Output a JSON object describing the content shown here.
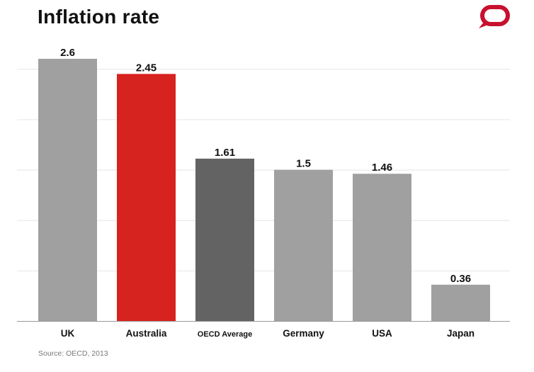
{
  "chart_data": {
    "type": "bar",
    "title": "Inflation rate",
    "categories": [
      "UK",
      "Australia",
      "OECD Average",
      "Germany",
      "USA",
      "Japan"
    ],
    "values": [
      2.6,
      2.45,
      1.61,
      1.5,
      1.46,
      0.36
    ],
    "data_labels": [
      "2.6",
      "2.45",
      "1.61",
      "1.5",
      "1.46",
      "0.36"
    ],
    "colors": [
      "#a0a0a0",
      "#d7231f",
      "#636363",
      "#a0a0a0",
      "#a0a0a0",
      "#a0a0a0"
    ],
    "xlabel": "",
    "ylabel": "",
    "ylim": [
      0,
      2.6
    ],
    "gridlines": [
      0.5,
      1,
      1.5,
      2,
      2.5
    ],
    "grid": true,
    "y_tick_labels": false,
    "legend": "none"
  },
  "source": "Source: OECD, 2013",
  "logo": {
    "name": "speech-bubble-logo",
    "color": "#c8102e"
  }
}
